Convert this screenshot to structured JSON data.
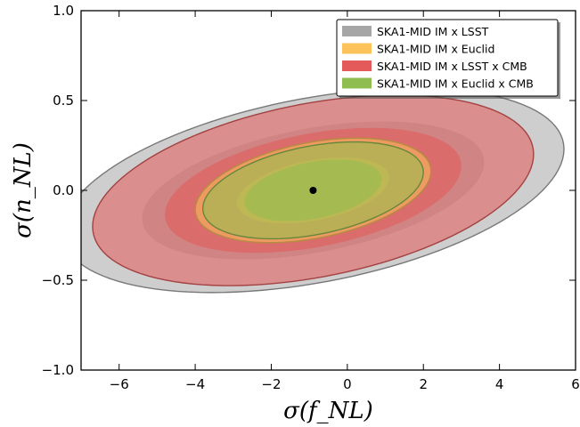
{
  "chart_data": {
    "type": "contour",
    "xlabel": "σ(f_NL)",
    "ylabel": "σ(n_NL)",
    "xlim": [
      -7,
      6
    ],
    "ylim": [
      -1.0,
      1.0
    ],
    "xticks": [
      -6,
      -4,
      -2,
      0,
      2,
      4,
      6
    ],
    "yticks": [
      -1.0,
      -0.5,
      0.0,
      0.5,
      1.0
    ],
    "xtick_labels": [
      "−6",
      "−4",
      "−2",
      "0",
      "2",
      "4",
      "6"
    ],
    "ytick_labels": [
      "−1.0",
      "−0.5",
      "0.0",
      "0.5",
      "1.0"
    ],
    "legend_position": "top-right",
    "fiducial": {
      "x": -0.9,
      "y": 0.0
    },
    "series": [
      {
        "name": "SKA1-MID IM x LSST",
        "color": "#a6a6a6",
        "outer": {
          "cx": -0.9,
          "cy": 0.0,
          "a": 6.6,
          "b": 0.52,
          "slope": 0.035
        },
        "inner": {
          "cx": -0.9,
          "cy": 0.0,
          "a": 4.5,
          "b": 0.35,
          "slope": 0.035
        }
      },
      {
        "name": "SKA1-MID IM x Euclid",
        "color": "#fdc35a",
        "outer": {
          "cx": -0.9,
          "cy": 0.0,
          "a": 3.1,
          "b": 0.27,
          "slope": 0.035
        },
        "inner": {
          "cx": -0.9,
          "cy": 0.0,
          "a": 2.0,
          "b": 0.17,
          "slope": 0.035
        }
      },
      {
        "name": "SKA1-MID IM x LSST x CMB",
        "color": "#e45a5a",
        "outer": {
          "cx": -0.9,
          "cy": 0.0,
          "a": 5.8,
          "b": 0.49,
          "slope": 0.035
        },
        "inner": {
          "cx": -0.9,
          "cy": 0.0,
          "a": 3.9,
          "b": 0.32,
          "slope": 0.035
        }
      },
      {
        "name": "SKA1-MID IM x Euclid x CMB",
        "color": "#8fbd4f",
        "outer": {
          "cx": -0.9,
          "cy": 0.0,
          "a": 2.9,
          "b": 0.25,
          "slope": 0.035
        },
        "inner": {
          "cx": -0.9,
          "cy": 0.0,
          "a": 1.8,
          "b": 0.16,
          "slope": 0.035
        }
      }
    ]
  }
}
